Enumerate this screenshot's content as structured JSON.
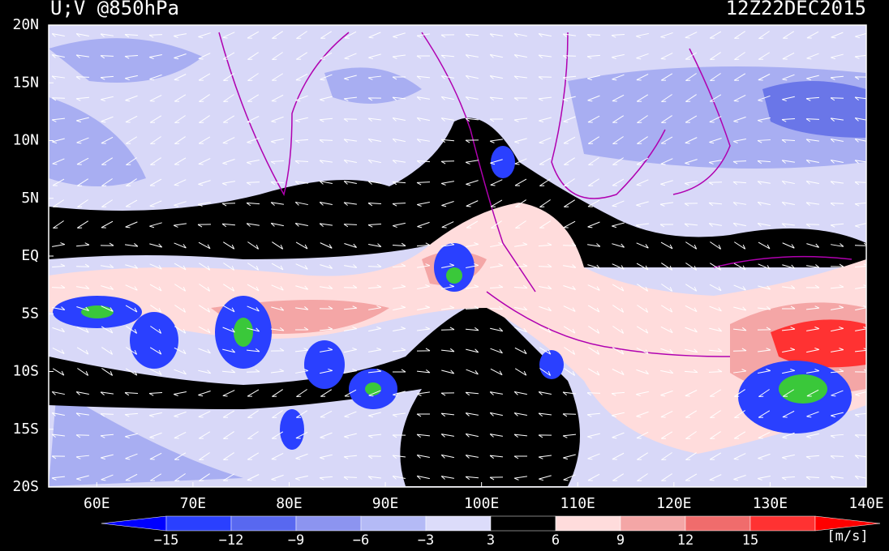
{
  "header": {
    "title": "U;V @850hPa",
    "date": "12Z22DEC2015"
  },
  "map": {
    "lat_labels": [
      "20N",
      "15N",
      "10N",
      "5N",
      "EQ",
      "5S",
      "10S",
      "15S",
      "20S"
    ],
    "lon_labels": [
      "60E",
      "70E",
      "80E",
      "90E",
      "100E",
      "110E",
      "120E",
      "130E",
      "140E"
    ]
  },
  "colorbar": {
    "labels": [
      "−15",
      "−12",
      "−9",
      "−6",
      "−3",
      "3",
      "6",
      "9",
      "12",
      "15"
    ],
    "colors": [
      "#0000ff",
      "#2a40ff",
      "#5868f0",
      "#8c94f0",
      "#b4baf6",
      "#dcdcfa",
      "#000000",
      "#ffdcdc",
      "#f4a6a6",
      "#f06c6c",
      "#ff3232",
      "#ff0000"
    ],
    "unit": "[m/s]"
  }
}
